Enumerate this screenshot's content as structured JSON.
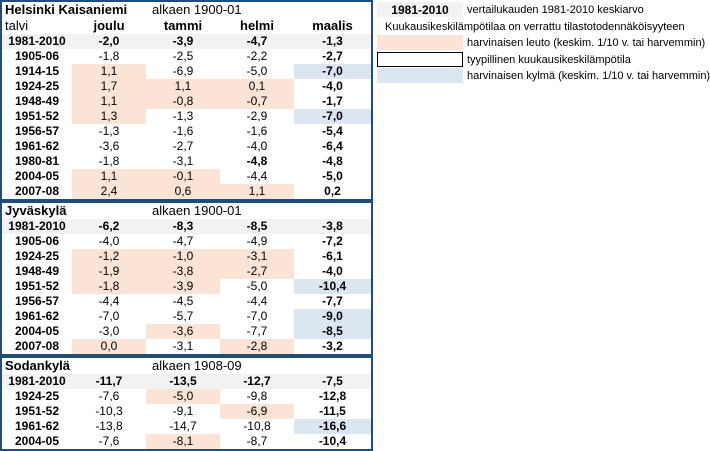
{
  "columns": [
    "talvi",
    "joulu",
    "tammi",
    "helmi",
    "maalis"
  ],
  "stations": [
    {
      "name": "Helsinki Kaisaniemi",
      "since": "alkaen 1900-01",
      "show_colhdr": true,
      "rows": [
        {
          "y": "1981-2010",
          "v": [
            "-2,0",
            "-3,9",
            "-4,7",
            "-1,3"
          ],
          "ref": true
        },
        {
          "y": "1905-06",
          "v": [
            "-1,8",
            "-2,5",
            "-2,2",
            "-2,7"
          ],
          "c": [
            "",
            "",
            "",
            ""
          ],
          "b": [
            0,
            0,
            0,
            1
          ]
        },
        {
          "y": "1914-15",
          "v": [
            "1,1",
            "-6,9",
            "-5,0",
            "-7,0"
          ],
          "c": [
            "w",
            "",
            "",
            "c"
          ],
          "b": [
            0,
            0,
            0,
            1
          ]
        },
        {
          "y": "1924-25",
          "v": [
            "1,7",
            "1,1",
            "0,1",
            "-4,0"
          ],
          "c": [
            "w",
            "w",
            "w",
            ""
          ],
          "b": [
            0,
            0,
            0,
            1
          ]
        },
        {
          "y": "1948-49",
          "v": [
            "1,1",
            "-0,8",
            "-0,7",
            "-1,7"
          ],
          "c": [
            "w",
            "w",
            "w",
            ""
          ],
          "b": [
            0,
            0,
            0,
            1
          ]
        },
        {
          "y": "1951-52",
          "v": [
            "1,3",
            "-1,3",
            "-2,9",
            "-7,0"
          ],
          "c": [
            "w",
            "",
            "",
            "c"
          ],
          "b": [
            0,
            0,
            0,
            1
          ]
        },
        {
          "y": "1956-57",
          "v": [
            "-1,3",
            "-1,6",
            "-1,6",
            "-5,4"
          ],
          "c": [
            "",
            "",
            "",
            ""
          ],
          "b": [
            0,
            0,
            0,
            1
          ]
        },
        {
          "y": "1961-62",
          "v": [
            "-3,6",
            "-2,7",
            "-4,0",
            "-6,4"
          ],
          "c": [
            "",
            "",
            "",
            ""
          ],
          "b": [
            0,
            0,
            0,
            1
          ]
        },
        {
          "y": "1980-81",
          "v": [
            "-1,8",
            "-3,1",
            "-4,8",
            "-4,8"
          ],
          "c": [
            "",
            "",
            "",
            ""
          ],
          "b": [
            0,
            0,
            1,
            1
          ]
        },
        {
          "y": "2004-05",
          "v": [
            "1,1",
            "-0,1",
            "-4,4",
            "-5,0"
          ],
          "c": [
            "w",
            "w",
            "",
            ""
          ],
          "b": [
            0,
            0,
            0,
            1
          ]
        },
        {
          "y": "2007-08",
          "v": [
            "2,4",
            "0,6",
            "1,1",
            "0,2"
          ],
          "c": [
            "w",
            "w",
            "w",
            ""
          ],
          "b": [
            0,
            0,
            0,
            1
          ]
        }
      ]
    },
    {
      "name": "Jyväskylä",
      "since": "alkaen 1900-01",
      "show_colhdr": false,
      "rows": [
        {
          "y": "1981-2010",
          "v": [
            "-6,2",
            "-8,3",
            "-8,5",
            "-3,8"
          ],
          "ref": true
        },
        {
          "y": "1905-06",
          "v": [
            "-4,0",
            "-4,7",
            "-4,9",
            "-7,2"
          ],
          "c": [
            "",
            "",
            "",
            ""
          ],
          "b": [
            0,
            0,
            0,
            1
          ]
        },
        {
          "y": "1924-25",
          "v": [
            "-1,2",
            "-1,0",
            "-3,1",
            "-6,1"
          ],
          "c": [
            "w",
            "w",
            "w",
            ""
          ],
          "b": [
            0,
            0,
            0,
            1
          ]
        },
        {
          "y": "1948-49",
          "v": [
            "-1,9",
            "-3,8",
            "-2,7",
            "-4,0"
          ],
          "c": [
            "w",
            "w",
            "w",
            ""
          ],
          "b": [
            0,
            0,
            0,
            1
          ]
        },
        {
          "y": "1951-52",
          "v": [
            "-1,8",
            "-3,9",
            "-5,0",
            "-10,4"
          ],
          "c": [
            "w",
            "w",
            "",
            "c"
          ],
          "b": [
            0,
            0,
            0,
            1
          ]
        },
        {
          "y": "1956-57",
          "v": [
            "-4,4",
            "-4,5",
            "-4,4",
            "-7,7"
          ],
          "c": [
            "",
            "",
            "",
            ""
          ],
          "b": [
            0,
            0,
            0,
            1
          ]
        },
        {
          "y": "1961-62",
          "v": [
            "-7,0",
            "-5,7",
            "-7,0",
            "-9,0"
          ],
          "c": [
            "",
            "",
            "",
            "c"
          ],
          "b": [
            0,
            0,
            0,
            1
          ]
        },
        {
          "y": "2004-05",
          "v": [
            "-3,0",
            "-3,6",
            "-7,7",
            "-8,5"
          ],
          "c": [
            "",
            "w",
            "",
            "c"
          ],
          "b": [
            0,
            0,
            0,
            1
          ]
        },
        {
          "y": "2007-08",
          "v": [
            "0,0",
            "-3,1",
            "-2,8",
            "-3,2"
          ],
          "c": [
            "w",
            "",
            "w",
            ""
          ],
          "b": [
            0,
            0,
            0,
            1
          ]
        }
      ]
    },
    {
      "name": "Sodankylä",
      "since": "alkaen 1908-09",
      "show_colhdr": false,
      "rows": [
        {
          "y": "1981-2010",
          "v": [
            "-11,7",
            "-13,5",
            "-12,7",
            "-7,5"
          ],
          "ref": true
        },
        {
          "y": "1924-25",
          "v": [
            "-7,6",
            "-5,0",
            "-9,8",
            "-12,8"
          ],
          "c": [
            "",
            "w",
            "",
            ""
          ],
          "b": [
            0,
            0,
            0,
            1
          ]
        },
        {
          "y": "1951-52",
          "v": [
            "-10,3",
            "-9,1",
            "-6,9",
            "-11,5"
          ],
          "c": [
            "",
            "",
            "w",
            ""
          ],
          "b": [
            0,
            0,
            0,
            1
          ]
        },
        {
          "y": "1961-62",
          "v": [
            "-13,8",
            "-14,7",
            "-10,8",
            "-16,6"
          ],
          "c": [
            "",
            "",
            "",
            "c"
          ],
          "b": [
            0,
            0,
            0,
            1
          ]
        },
        {
          "y": "2004-05",
          "v": [
            "-7,6",
            "-8,1",
            "-8,7",
            "-10,4"
          ],
          "c": [
            "",
            "w",
            "",
            ""
          ],
          "b": [
            0,
            0,
            0,
            1
          ]
        }
      ]
    }
  ],
  "legend": {
    "ref_label": "1981-2010",
    "ref_text": "vertailukauden  1981-2010 keskiarvo",
    "intro": "Kuukausikeskilämpötilaa on verrattu tilastotodennäköisyyteen",
    "warm_text": "harvinaisen leuto (keskim. 1/10 v. tai harvemmin)",
    "typical_text": "tyypillinen kuukausikeskilämpötila",
    "cold_text": "harvinaisen kylmä  (keskim. 1/10 v. tai harvemmin)"
  },
  "colors": {
    "warm": "#fbe4d5",
    "cold": "#dce6f1",
    "reference": "#f2f2f2",
    "border": "#1f4e79"
  }
}
